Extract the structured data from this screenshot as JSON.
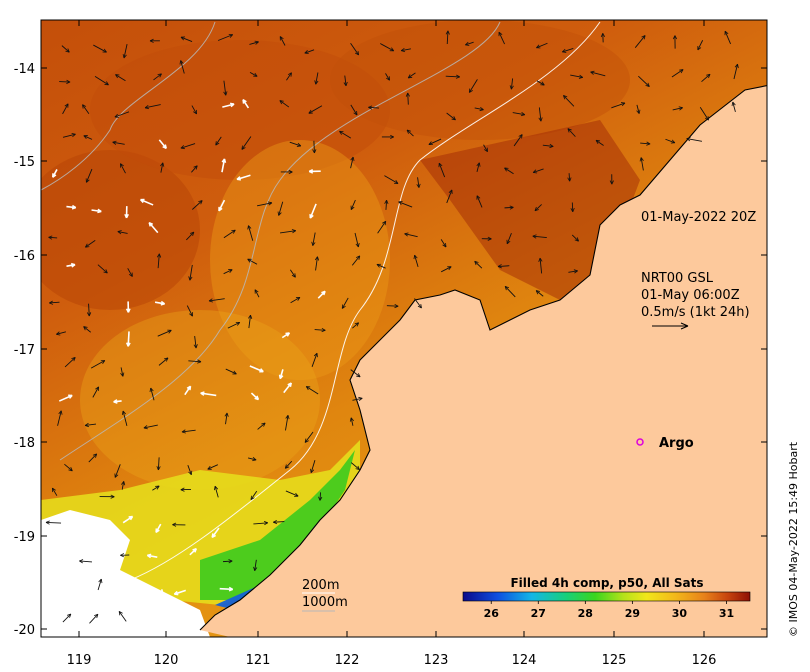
{
  "map": {
    "lon_ticks": [
      "119",
      "120",
      "121",
      "122",
      "123",
      "124",
      "125",
      "126"
    ],
    "lat_ticks": [
      "-14",
      "-15",
      "-16",
      "-17",
      "-18",
      "-19",
      "-20"
    ],
    "timestamp_label": "01-May-2022 20Z",
    "current_info": {
      "line1": "NRT00 GSL",
      "line2": "01-May 06:00Z",
      "line3": "0.5m/s (1kt 24h)"
    },
    "argo_label": "Argo",
    "contours": {
      "c200": "200m",
      "c1000": "1000m"
    },
    "credit": "© IMOS 04-May-2022 15:49 Hobart",
    "colors": {
      "land": "#fdc99c",
      "argo_marker": "#dd00dd"
    }
  },
  "colorbar": {
    "title": "Filled 4h comp, p50, All Sats",
    "ticks": [
      "26",
      "27",
      "28",
      "29",
      "30",
      "31"
    ],
    "range": [
      25.4,
      31.5
    ]
  }
}
